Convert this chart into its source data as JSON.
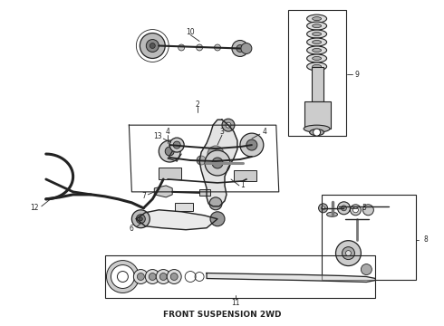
{
  "title": "FRONT SUSPENSION 2WD",
  "title_fontsize": 6.5,
  "title_fontweight": "bold",
  "bg_color": "#ffffff",
  "line_color": "#222222",
  "fig_width": 4.9,
  "fig_height": 3.6,
  "dpi": 100
}
